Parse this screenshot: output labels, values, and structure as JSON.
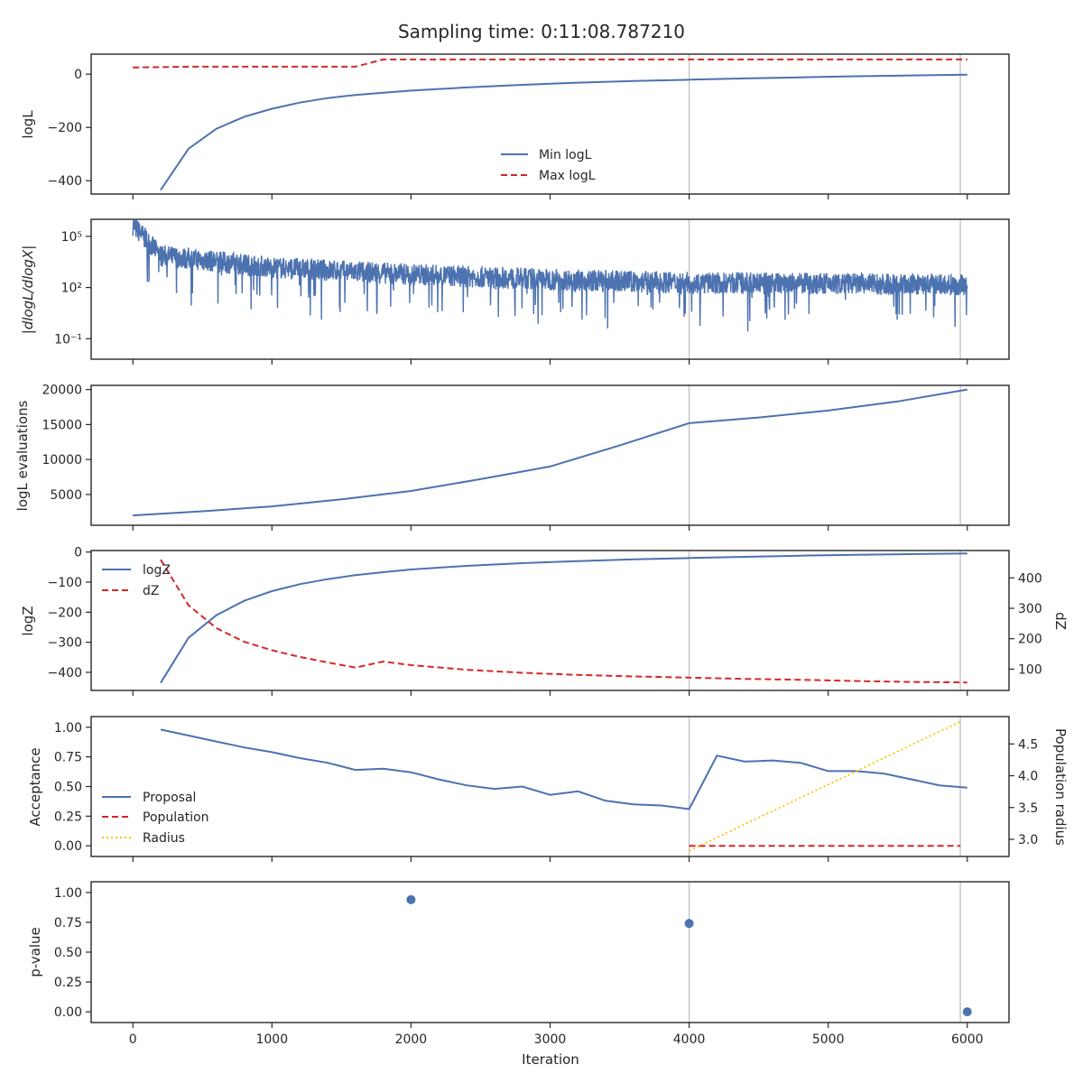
{
  "title": "Sampling time: 0:11:08.787210",
  "colors": {
    "blue": "#4c72b0",
    "red": "#d62728",
    "yellow": "#ffc107",
    "vline": "#c8c8c8",
    "axis": "#262626"
  },
  "chart_data": [
    {
      "type": "line",
      "id": "logl",
      "ylabel": "logL",
      "ylim": [
        -450,
        75
      ],
      "yticks": [
        "0",
        "−200",
        "−400"
      ],
      "ytick_values": [
        0,
        -200,
        -400
      ],
      "x": [
        200,
        400,
        600,
        800,
        1000,
        1200,
        1400,
        1600,
        1800,
        2000,
        2400,
        2800,
        3200,
        3600,
        4000,
        4400,
        4800,
        5200,
        5600,
        6000
      ],
      "series": [
        {
          "name": "Min logL",
          "values": [
            -435,
            -280,
            -205,
            -160,
            -130,
            -107,
            -90,
            -78,
            -70,
            -62,
            -50,
            -40,
            -32,
            -26,
            -21,
            -16,
            -12,
            -8,
            -5,
            -2
          ]
        },
        {
          "name": "Max logL",
          "x": [
            0,
            400,
            1600,
            1800,
            6000
          ],
          "values": [
            25,
            28,
            28,
            55,
            55
          ]
        }
      ],
      "legend": "center-bottom"
    },
    {
      "type": "line",
      "id": "dlogl",
      "ylabel": "|dlogL/dlogX|",
      "yscale": "log",
      "ylim_log10": [
        -2.2,
        6.0
      ],
      "yticks": [
        "10⁵",
        "10²",
        "10⁻¹"
      ],
      "ytick_values_log10": [
        5,
        2,
        -1
      ],
      "series": [
        {
          "name": "|dlogL/dlogX|",
          "x_range": [
            0,
            6000
          ],
          "trend_log10": [
            5.8,
            4.0,
            3.3,
            2.9,
            2.6,
            2.4,
            2.3
          ],
          "trend_x": [
            0,
            200,
            1000,
            2000,
            3000,
            4000,
            6000
          ],
          "spread_log10": 0.8
        }
      ]
    },
    {
      "type": "line",
      "id": "evals",
      "ylabel": "logL evaluations",
      "ylim": [
        600,
        20600
      ],
      "yticks": [
        "20000",
        "15000",
        "10000",
        "5000"
      ],
      "ytick_values": [
        20000,
        15000,
        10000,
        5000
      ],
      "series": [
        {
          "name": "logL evaluations",
          "x": [
            0,
            500,
            1000,
            1500,
            2000,
            2500,
            3000,
            3500,
            4000,
            4500,
            5000,
            5500,
            6000
          ],
          "values": [
            2000,
            2600,
            3300,
            4300,
            5500,
            7200,
            9000,
            12000,
            15200,
            16000,
            17000,
            18300,
            20000
          ]
        }
      ]
    },
    {
      "type": "line",
      "id": "logz",
      "ylabel": "logZ",
      "ylabel_right": "dZ",
      "ylim": [
        -460,
        5
      ],
      "yticks": [
        "0",
        "−100",
        "−200",
        "−300",
        "−400"
      ],
      "ytick_values": [
        0,
        -100,
        -200,
        -300,
        -400
      ],
      "ylim_right": [
        30,
        490
      ],
      "yticks_right": [
        "400",
        "300",
        "200",
        "100"
      ],
      "ytick_values_right": [
        400,
        300,
        200,
        100
      ],
      "x": [
        200,
        400,
        600,
        800,
        1000,
        1200,
        1400,
        1600,
        1800,
        2000,
        2400,
        2800,
        3200,
        3600,
        4000,
        4400,
        4800,
        5200,
        5600,
        6000
      ],
      "series": [
        {
          "name": "logZ",
          "values": [
            -435,
            -285,
            -210,
            -162,
            -130,
            -107,
            -90,
            -77,
            -67,
            -58,
            -46,
            -37,
            -30,
            -24,
            -20,
            -16,
            -12,
            -9,
            -7,
            -5
          ]
        },
        {
          "name": "dZ",
          "axis": "right",
          "values": [
            460,
            310,
            235,
            190,
            162,
            140,
            122,
            105,
            125,
            113,
            98,
            88,
            81,
            76,
            72,
            68,
            65,
            61,
            58,
            56
          ]
        }
      ],
      "legend": "top-left"
    },
    {
      "type": "line",
      "id": "accept",
      "ylabel": "Acceptance",
      "ylabel_right": "Population radius",
      "ylim": [
        -0.09,
        1.09
      ],
      "yticks": [
        "1.00",
        "0.75",
        "0.50",
        "0.25",
        "0.00"
      ],
      "ytick_values": [
        1.0,
        0.75,
        0.5,
        0.25,
        0.0
      ],
      "ylim_right": [
        2.73,
        4.93
      ],
      "yticks_right": [
        "4.5",
        "4.0",
        "3.5",
        "3.0"
      ],
      "ytick_values_right": [
        4.5,
        4.0,
        3.5,
        3.0
      ],
      "series": [
        {
          "name": "Proposal",
          "x": [
            200,
            400,
            600,
            800,
            1000,
            1200,
            1400,
            1600,
            1800,
            2000,
            2200,
            2400,
            2600,
            2800,
            3000,
            3200,
            3400,
            3600,
            3800,
            4000,
            4200,
            4400,
            4600,
            4800,
            5000,
            5200,
            5400,
            5600,
            5800,
            6000
          ],
          "values": [
            0.98,
            0.93,
            0.88,
            0.83,
            0.79,
            0.74,
            0.7,
            0.64,
            0.65,
            0.62,
            0.56,
            0.51,
            0.48,
            0.5,
            0.43,
            0.46,
            0.38,
            0.35,
            0.34,
            0.31,
            0.76,
            0.71,
            0.72,
            0.7,
            0.63,
            0.63,
            0.61,
            0.56,
            0.51,
            0.49
          ]
        },
        {
          "name": "Population",
          "x": [
            4000,
            5950
          ],
          "values": [
            0.0,
            0.0
          ]
        },
        {
          "name": "Radius",
          "axis": "right",
          "x": [
            4000,
            5950
          ],
          "values": [
            2.82,
            4.85
          ]
        }
      ],
      "legend": "lower-left"
    },
    {
      "type": "scatter",
      "id": "pvalue",
      "ylabel": "p-value",
      "ylim": [
        -0.09,
        1.09
      ],
      "yticks": [
        "1.00",
        "0.75",
        "0.50",
        "0.25",
        "0.00"
      ],
      "ytick_values": [
        1.0,
        0.75,
        0.5,
        0.25,
        0.0
      ],
      "series": [
        {
          "name": "p-value",
          "x": [
            2000,
            4000,
            6000
          ],
          "values": [
            0.94,
            0.74,
            0.0
          ]
        }
      ]
    }
  ],
  "shared_x": {
    "xlabel": "Iteration",
    "xlim": [
      -300,
      6300
    ],
    "xticks": [
      "0",
      "1000",
      "2000",
      "3000",
      "4000",
      "5000",
      "6000"
    ],
    "xtick_values": [
      0,
      1000,
      2000,
      3000,
      4000,
      5000,
      6000
    ],
    "vlines": [
      4000,
      5950
    ]
  }
}
